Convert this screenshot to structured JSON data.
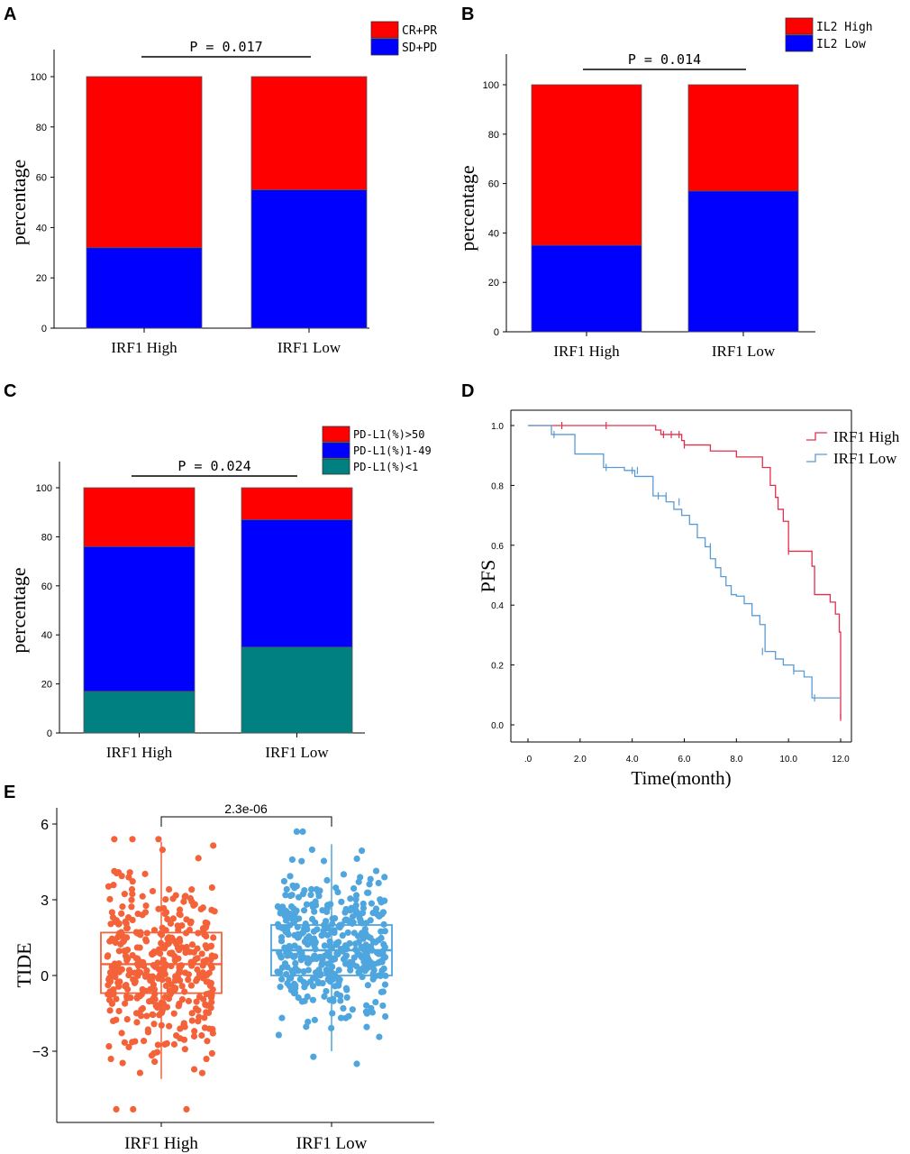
{
  "colors": {
    "red": "#ff0000",
    "blue": "#0000ff",
    "teal": "#008080",
    "km_high": "#e0304e",
    "km_low": "#5b9bd5",
    "box_high": "#f4623a",
    "box_low": "#4fa6de"
  },
  "chart_data": [
    {
      "panel": "A",
      "type": "bar",
      "stacked": true,
      "categories": [
        "IRF1 High",
        "IRF1 Low"
      ],
      "series": [
        {
          "name": "SD+PD",
          "values": [
            32,
            55
          ]
        },
        {
          "name": "CR+PR",
          "values": [
            68,
            45
          ]
        }
      ],
      "legend": [
        "CR+PR",
        "SD+PD"
      ],
      "ylabel": "percentage",
      "xlabel": "",
      "ylim": [
        0,
        100
      ],
      "yticks": [
        "0",
        "20",
        "40",
        "60",
        "80",
        "100"
      ],
      "annotation": "P = 0.017"
    },
    {
      "panel": "B",
      "type": "bar",
      "stacked": true,
      "categories": [
        "IRF1 High",
        "IRF1 Low"
      ],
      "series": [
        {
          "name": "IL2 Low",
          "values": [
            35,
            57
          ]
        },
        {
          "name": "IL2 High",
          "values": [
            65,
            43
          ]
        }
      ],
      "legend": [
        "IL2 High",
        "IL2 Low"
      ],
      "ylabel": "percentage",
      "xlabel": "",
      "ylim": [
        0,
        100
      ],
      "yticks": [
        "0",
        "20",
        "40",
        "60",
        "80",
        "100"
      ],
      "annotation": "P = 0.014"
    },
    {
      "panel": "C",
      "type": "bar",
      "stacked": true,
      "categories": [
        "IRF1 High",
        "IRF1 Low"
      ],
      "series": [
        {
          "name": "PD-L1(%)<1",
          "values": [
            17,
            35
          ]
        },
        {
          "name": "PD-L1(%)1-49",
          "values": [
            59,
            52
          ]
        },
        {
          "name": "PD-L1(%)>50",
          "values": [
            24,
            13
          ]
        }
      ],
      "legend": [
        "PD-L1(%)>50",
        "PD-L1(%)1-49",
        "PD-L1(%)<1"
      ],
      "ylabel": "percentage",
      "xlabel": "",
      "ylim": [
        0,
        100
      ],
      "yticks": [
        "0",
        "20",
        "40",
        "60",
        "80",
        "100"
      ],
      "annotation": "P = 0.024"
    },
    {
      "panel": "D",
      "type": "line",
      "subtype": "kaplan-meier",
      "xlabel": "Time(month)",
      "ylabel": "PFS",
      "xlim": [
        0,
        12
      ],
      "ylim": [
        0,
        1
      ],
      "xticks": [
        ".0",
        "2.0",
        "4.0",
        "6.0",
        "8.0",
        "10.0",
        "12.0"
      ],
      "yticks": [
        "0.0",
        "0.2",
        "0.4",
        "0.6",
        "0.8",
        "1.0"
      ],
      "series": [
        {
          "name": "IRF1 High",
          "x": [
            0,
            4.9,
            5.1,
            5.9,
            6.0,
            7.0,
            8.0,
            9.0,
            9.3,
            9.5,
            9.6,
            9.8,
            10.0,
            10.5,
            10.9,
            11.0,
            11.6,
            11.8,
            11.95,
            12.0
          ],
          "y": [
            1.0,
            0.985,
            0.97,
            0.95,
            0.935,
            0.915,
            0.895,
            0.86,
            0.8,
            0.76,
            0.72,
            0.68,
            0.58,
            0.58,
            0.53,
            0.435,
            0.41,
            0.37,
            0.31,
            0.02
          ],
          "censored": [
            [
              1.3,
              1.0
            ],
            [
              3.0,
              1.0
            ],
            [
              5.2,
              0.97
            ],
            [
              5.5,
              0.97
            ],
            [
              5.8,
              0.97
            ],
            [
              6.0,
              0.935
            ],
            [
              10.0,
              0.58
            ],
            [
              12.0,
              0.025
            ]
          ]
        },
        {
          "name": "IRF1 Low",
          "x": [
            0,
            0.9,
            1.8,
            2.9,
            3.7,
            4.1,
            4.8,
            5.3,
            5.6,
            5.9,
            6.2,
            6.5,
            6.8,
            7.0,
            7.2,
            7.4,
            7.6,
            7.8,
            8.0,
            8.3,
            8.6,
            8.9,
            9.1,
            9.5,
            9.8,
            10.2,
            10.6,
            10.9,
            12.0
          ],
          "y": [
            1.0,
            0.97,
            0.905,
            0.86,
            0.85,
            0.83,
            0.765,
            0.745,
            0.72,
            0.7,
            0.67,
            0.625,
            0.595,
            0.555,
            0.525,
            0.495,
            0.465,
            0.435,
            0.43,
            0.405,
            0.365,
            0.335,
            0.245,
            0.22,
            0.2,
            0.18,
            0.16,
            0.09,
            0.09
          ],
          "censored": [
            [
              1.0,
              0.97
            ],
            [
              3.0,
              0.86
            ],
            [
              4.0,
              0.85
            ],
            [
              4.2,
              0.85
            ],
            [
              5.0,
              0.765
            ],
            [
              5.3,
              0.765
            ],
            [
              5.8,
              0.745
            ],
            [
              7.0,
              0.595
            ],
            [
              9.0,
              0.245
            ],
            [
              10.2,
              0.18
            ],
            [
              11.0,
              0.09
            ]
          ]
        }
      ],
      "legend": [
        "IRF1 High",
        "IRF1 Low"
      ]
    },
    {
      "panel": "E",
      "type": "scatter",
      "subtype": "box-with-jitter",
      "categories": [
        "IRF1 High",
        "IRF1 Low"
      ],
      "ylabel": "TIDE",
      "xlabel": "",
      "ylim": [
        -5.5,
        6.5
      ],
      "yticks": [
        "-3",
        "0",
        "3",
        "6"
      ],
      "annotation": "2.3e-06",
      "boxes": [
        {
          "name": "IRF1 High",
          "q1": -0.7,
          "median": 0.45,
          "q3": 1.7,
          "whisker_low": -4.1,
          "whisker_high": 5.3,
          "min": -5.3,
          "max": 5.4,
          "n": 420
        },
        {
          "name": "IRF1 Low",
          "q1": 0.0,
          "median": 1.0,
          "q3": 2.0,
          "whisker_low": -3.0,
          "whisker_high": 5.2,
          "min": -3.5,
          "max": 5.7,
          "n": 420
        }
      ]
    }
  ]
}
